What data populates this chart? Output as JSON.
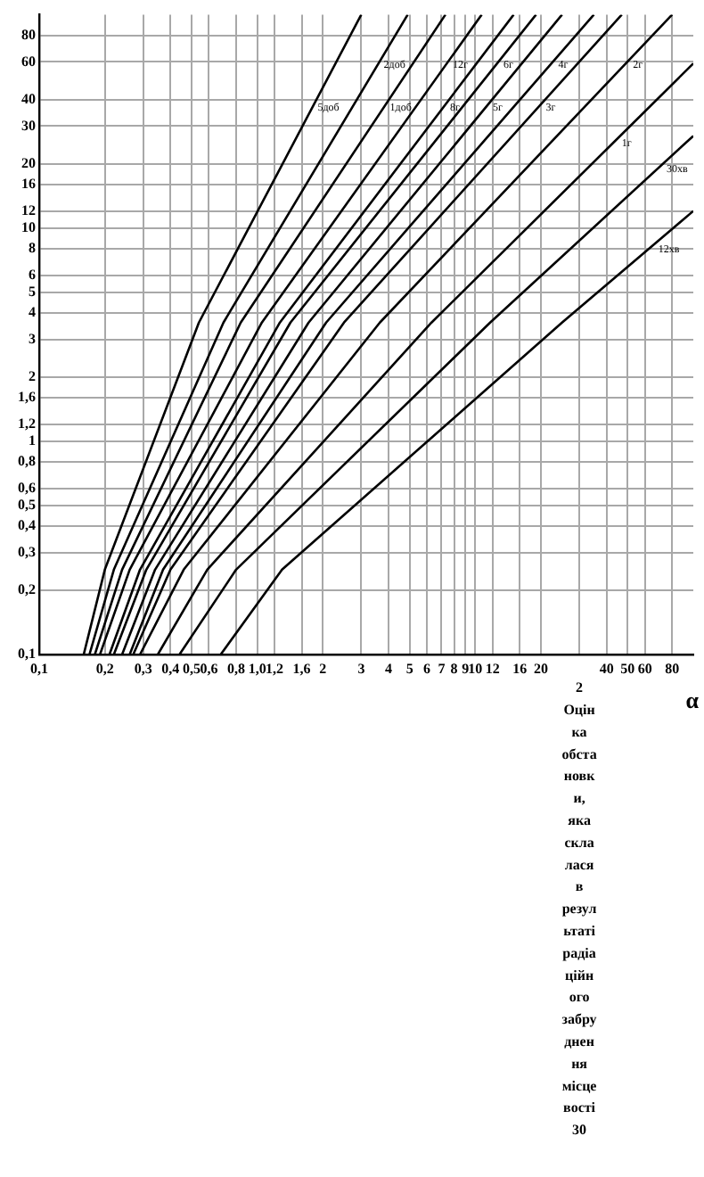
{
  "chart_data": {
    "type": "line",
    "xlabel": "α",
    "log": "xy",
    "grid": true,
    "legend": false,
    "marker": "none",
    "line_style": "solid",
    "annotations": [
      "2 Оцінка обстановки, яка склалася в результаті радіаційного забруднення місцевості",
      "30"
    ],
    "xlim": [
      0.1,
      100
    ],
    "ylim": [
      0.1,
      100
    ],
    "xticks": [
      {
        "value": 0.1,
        "label": "0,1"
      },
      {
        "value": 0.2,
        "label": "0,2"
      },
      {
        "value": 0.3,
        "label": "0,3"
      },
      {
        "value": 0.4,
        "label": "0,4"
      },
      {
        "value": 0.5,
        "label": "0,5"
      },
      {
        "value": 0.6,
        "label": "0,6"
      },
      {
        "value": 0.8,
        "label": "0,8"
      },
      {
        "value": 1,
        "label": "1,0"
      },
      {
        "value": 1.2,
        "label": "1,2"
      },
      {
        "value": 1.6,
        "label": "1,6"
      },
      2,
      3,
      4,
      5,
      6,
      7,
      8,
      9,
      10,
      12,
      16,
      20,
      {
        "value": 30,
        "label": null
      },
      40,
      50,
      60,
      80
    ],
    "yticks": [
      {
        "value": 0.1,
        "label": "0,1"
      },
      {
        "value": 0.2,
        "label": "0,2"
      },
      {
        "value": 0.3,
        "label": "0,3"
      },
      {
        "value": 0.4,
        "label": "0,4"
      },
      {
        "value": 0.5,
        "label": "0,5"
      },
      {
        "value": 0.6,
        "label": "0,6"
      },
      {
        "value": 0.8,
        "label": "0,8"
      },
      1,
      {
        "value": 1.2,
        "label": "1,2"
      },
      {
        "value": 1.6,
        "label": "1,6"
      },
      2,
      3,
      4,
      5,
      6,
      8,
      10,
      12,
      16,
      20,
      30,
      40,
      60,
      80
    ],
    "series": [
      {
        "name": "5доб",
        "color": "#000000",
        "x": [
          0.16,
          0.2,
          0.54,
          3.0
        ],
        "values": [
          0.1,
          0.25,
          3.6,
          100
        ]
      },
      {
        "name": "2доб",
        "color": "#000000",
        "x": [
          0.17,
          0.22,
          0.7,
          4.9
        ],
        "values": [
          0.1,
          0.25,
          3.6,
          100
        ]
      },
      {
        "name": "1доб",
        "color": "#000000",
        "x": [
          0.18,
          0.24,
          0.84,
          7.3
        ],
        "values": [
          0.1,
          0.25,
          3.6,
          100
        ]
      },
      {
        "name": "12г",
        "color": "#000000",
        "x": [
          0.19,
          0.26,
          1.05,
          10.7
        ],
        "values": [
          0.1,
          0.25,
          3.6,
          100
        ]
      },
      {
        "name": "8г",
        "color": "#000000",
        "x": [
          0.21,
          0.29,
          1.27,
          15
        ],
        "values": [
          0.1,
          0.25,
          3.6,
          100
        ]
      },
      {
        "name": "6г",
        "color": "#000000",
        "x": [
          0.22,
          0.31,
          1.42,
          19
        ],
        "values": [
          0.1,
          0.25,
          3.6,
          100
        ]
      },
      {
        "name": "5г",
        "color": "#000000",
        "x": [
          0.24,
          0.34,
          1.72,
          25
        ],
        "values": [
          0.1,
          0.25,
          3.6,
          100
        ]
      },
      {
        "name": "4г",
        "color": "#000000",
        "x": [
          0.26,
          0.37,
          2.07,
          35
        ],
        "values": [
          0.1,
          0.25,
          3.6,
          100
        ]
      },
      {
        "name": "3г",
        "color": "#000000",
        "x": [
          0.27,
          0.4,
          2.5,
          47
        ],
        "values": [
          0.1,
          0.25,
          3.6,
          100
        ]
      },
      {
        "name": "2г",
        "color": "#000000",
        "x": [
          0.29,
          0.46,
          3.65,
          80
        ],
        "values": [
          0.1,
          0.25,
          3.6,
          100
        ]
      },
      {
        "name": "1г",
        "color": "#000000",
        "x": [
          0.35,
          0.59,
          6.3,
          100
        ],
        "values": [
          0.1,
          0.25,
          3.6,
          59
        ]
      },
      {
        "name": "30хв",
        "color": "#000000",
        "x": [
          0.44,
          0.8,
          11.7,
          100
        ],
        "values": [
          0.1,
          0.25,
          3.6,
          27
        ]
      },
      {
        "name": "12хв",
        "color": "#000000",
        "x": [
          0.68,
          1.3,
          25,
          100
        ],
        "values": [
          0.1,
          0.25,
          3.6,
          12
        ]
      }
    ]
  }
}
